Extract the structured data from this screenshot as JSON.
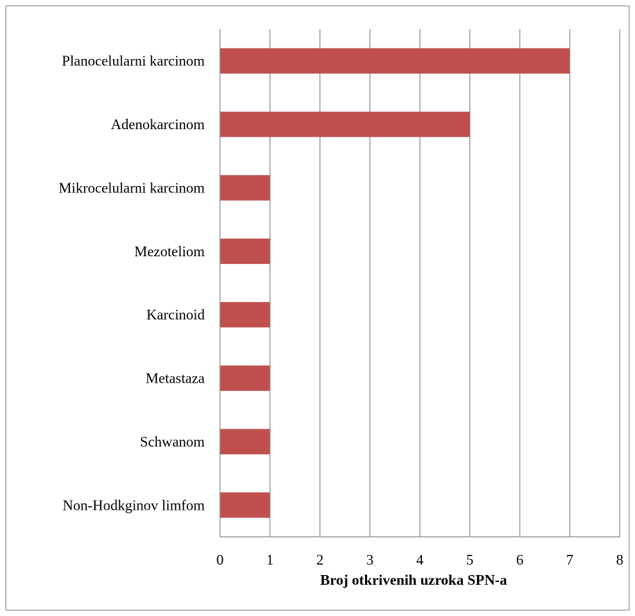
{
  "chart_data": {
    "type": "bar",
    "orientation": "horizontal",
    "categories": [
      "Planocelularni karcinom",
      "Adenokarcinom",
      "Mikrocelularni karcinom",
      "Mezoteliom",
      "Karcinoid",
      "Metastaza",
      "Schwanom",
      "Non-Hodkginov limfom"
    ],
    "values": [
      7,
      5,
      1,
      1,
      1,
      1,
      1,
      1
    ],
    "xlabel": "Broj otkrivenih uzroka SPN-a",
    "ylabel": "",
    "xlim": [
      0,
      8
    ],
    "xticks": [
      "0",
      "1",
      "2",
      "3",
      "4",
      "5",
      "6",
      "7",
      "8"
    ],
    "grid": true,
    "legend": "none",
    "bar_color": "#c0504d",
    "grid_color": "#868686"
  }
}
